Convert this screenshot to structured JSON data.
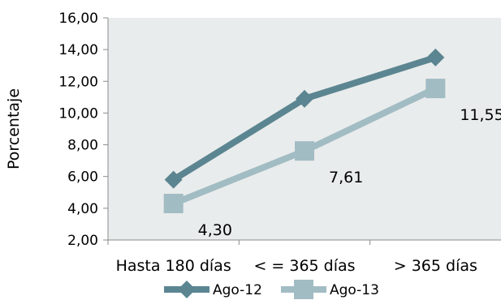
{
  "chart_data": {
    "type": "line",
    "title": "",
    "xlabel": "",
    "ylabel": "Porcentaje",
    "categories": [
      "Hasta 180 días",
      "< = 365 días",
      "> 365 días"
    ],
    "ylim": [
      2,
      16
    ],
    "ytick_step": 2,
    "ytick_labels": [
      "2,00",
      "4,00",
      "6,00",
      "8,00",
      "10,00",
      "12,00",
      "14,00",
      "16,00"
    ],
    "grid": false,
    "plot_background": "#e9ecec",
    "legend_position": "bottom",
    "series": [
      {
        "name": "Ago-12",
        "values": [
          5.8,
          10.9,
          13.5
        ],
        "color": "#5b8591",
        "marker": "diamond",
        "data_labels": [
          "",
          "",
          ""
        ]
      },
      {
        "name": "Ago-13",
        "values": [
          4.3,
          7.61,
          11.55
        ],
        "color": "#a2bcc4",
        "marker": "square",
        "data_labels": [
          "4,30",
          "7,61",
          "11,55"
        ]
      }
    ]
  }
}
